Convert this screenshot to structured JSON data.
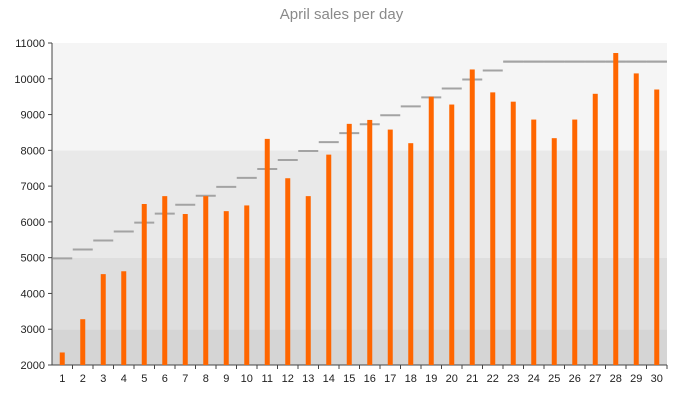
{
  "chart_data": {
    "type": "bar",
    "title": "April sales per day",
    "xlabel": "",
    "ylabel": "",
    "categories": [
      "1",
      "2",
      "3",
      "4",
      "5",
      "6",
      "7",
      "8",
      "9",
      "10",
      "11",
      "12",
      "13",
      "14",
      "15",
      "16",
      "17",
      "18",
      "19",
      "20",
      "21",
      "22",
      "23",
      "24",
      "25",
      "26",
      "27",
      "28",
      "29",
      "30"
    ],
    "ylim": [
      2000,
      11000
    ],
    "yticks": [
      2000,
      3000,
      4000,
      5000,
      6000,
      7000,
      8000,
      9000,
      10000,
      11000
    ],
    "series": [
      {
        "type": "bar",
        "values": [
          2350,
          3280,
          4540,
          4620,
          6500,
          6720,
          6220,
          6720,
          6300,
          6460,
          8320,
          7220,
          6720,
          7880,
          8740,
          8850,
          8580,
          8200,
          9500,
          9280,
          10260,
          9620,
          9360,
          8860,
          8340,
          8860,
          9580,
          10720,
          10150,
          9700
        ],
        "color": "#ff6600"
      },
      {
        "type": "step-target",
        "values": [
          4980,
          5230,
          5480,
          5730,
          5980,
          6230,
          6480,
          6730,
          6980,
          7230,
          7480,
          7730,
          7980,
          8230,
          8480,
          8730,
          8980,
          9230,
          9480,
          9730,
          9980,
          10230,
          10480,
          10480,
          10480,
          10480,
          10480,
          10480,
          10480,
          10480
        ],
        "color": "#a3a3a3"
      }
    ],
    "bands": [
      {
        "from": 2000,
        "to": 3000,
        "color": "#d5d5d5"
      },
      {
        "from": 3000,
        "to": 5000,
        "color": "#dedede"
      },
      {
        "from": 5000,
        "to": 8000,
        "color": "#e9e9e9"
      },
      {
        "from": 8000,
        "to": 11000,
        "color": "#f5f5f5"
      }
    ],
    "grid": false,
    "legend": "none"
  }
}
